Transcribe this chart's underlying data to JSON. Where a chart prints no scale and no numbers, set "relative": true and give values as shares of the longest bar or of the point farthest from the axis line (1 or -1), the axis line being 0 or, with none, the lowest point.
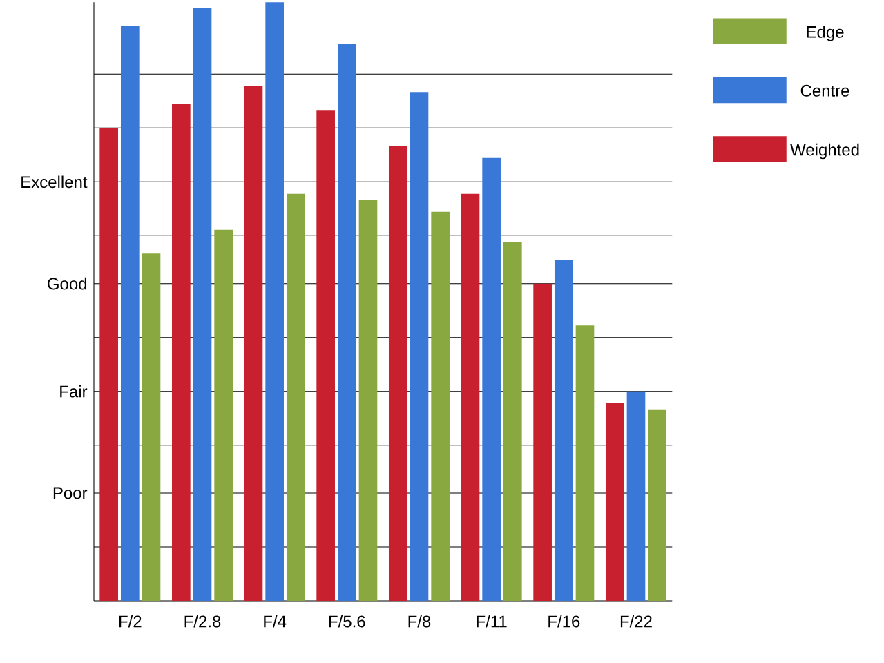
{
  "chart_data": {
    "type": "bar",
    "relative": true,
    "categories": [
      "F/2",
      "F/2.8",
      "F/4",
      "F/5.6",
      "F/8",
      "F/11",
      "F/16",
      "F/22"
    ],
    "series": [
      {
        "name": "Weighted",
        "color": "#c8202e",
        "values": [
          0.79,
          0.83,
          0.86,
          0.82,
          0.76,
          0.68,
          0.53,
          0.33
        ]
      },
      {
        "name": "Centre",
        "color": "#3a78d8",
        "values": [
          0.96,
          0.99,
          1,
          0.93,
          0.85,
          0.74,
          0.57,
          0.35
        ]
      },
      {
        "name": "Edge",
        "color": "#8aa840",
        "values": [
          0.58,
          0.62,
          0.68,
          0.67,
          0.65,
          0.6,
          0.46,
          0.32
        ]
      }
    ],
    "ref_lines": [
      {
        "axis": "y",
        "value": 0.09
      },
      {
        "axis": "y",
        "value": 0.18,
        "label": "Poor"
      },
      {
        "axis": "y",
        "value": 0.26
      },
      {
        "axis": "y",
        "value": 0.35,
        "label": "Fair"
      },
      {
        "axis": "y",
        "value": 0.44
      },
      {
        "axis": "y",
        "value": 0.53,
        "label": "Good"
      },
      {
        "axis": "y",
        "value": 0.61
      },
      {
        "axis": "y",
        "value": 0.7,
        "label": "Excellent"
      },
      {
        "axis": "y",
        "value": 0.79
      },
      {
        "axis": "y",
        "value": 0.88
      }
    ],
    "legend": "top right"
  }
}
